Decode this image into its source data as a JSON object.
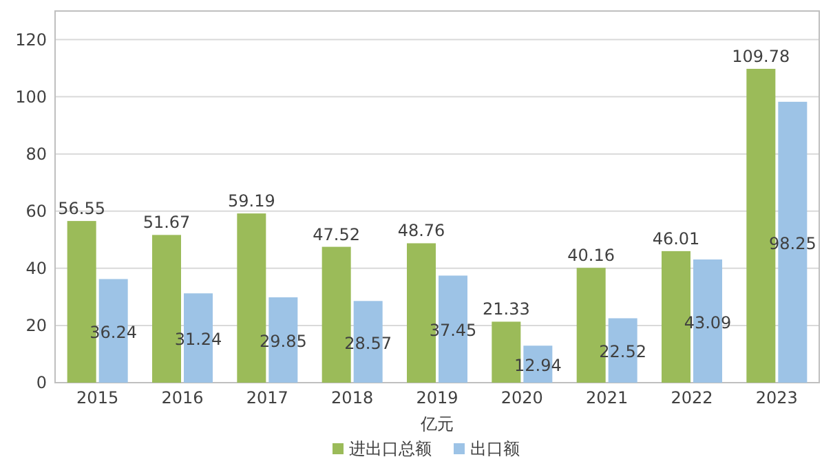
{
  "chart_data": {
    "type": "bar",
    "xlabel": "亿元",
    "categories": [
      "2015",
      "2016",
      "2017",
      "2018",
      "2019",
      "2020",
      "2021",
      "2022",
      "2023"
    ],
    "series": [
      {
        "name": "进出口总额",
        "color": "#9bbb59",
        "values": [
          56.55,
          51.67,
          59.19,
          47.52,
          48.76,
          21.33,
          40.16,
          46.01,
          109.78
        ]
      },
      {
        "name": "出口额",
        "color": "#9dc3e6",
        "values": [
          36.24,
          31.24,
          29.85,
          28.57,
          37.45,
          12.94,
          22.52,
          43.09,
          98.25
        ]
      }
    ],
    "ylim": [
      0,
      130
    ],
    "yticks": [
      0,
      20,
      40,
      60,
      80,
      100,
      120
    ],
    "grid": "y",
    "legend": "bottom",
    "data_labels": true
  }
}
